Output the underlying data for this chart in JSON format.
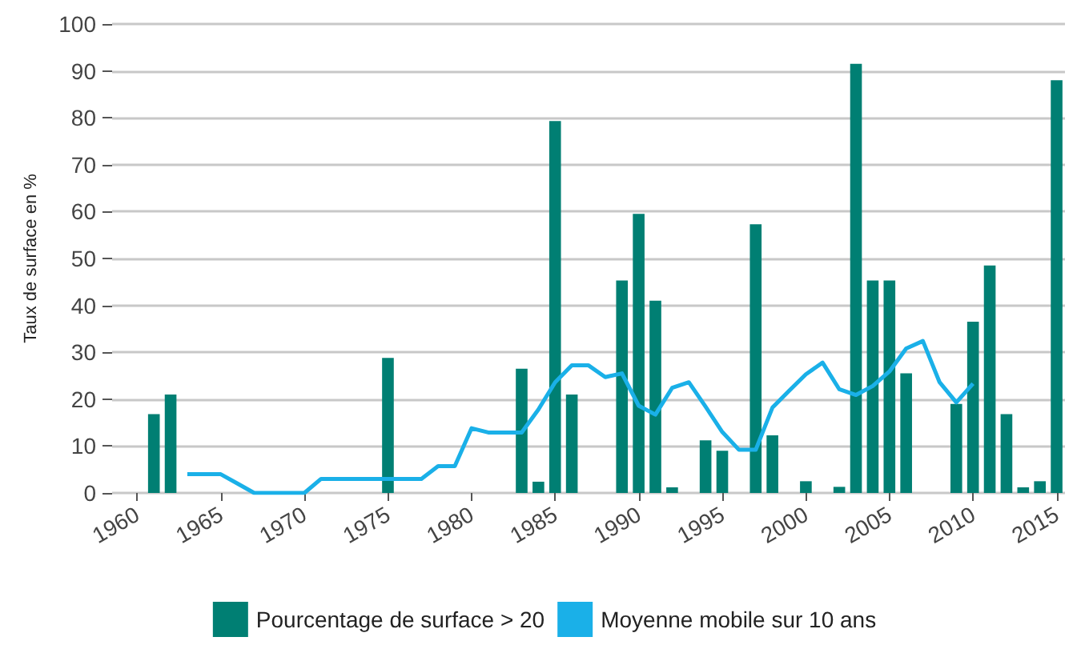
{
  "chart_data": {
    "type": "bar",
    "ylabel": "Taux de surface en %",
    "categories": [
      null,
      "1960",
      null,
      null,
      null,
      null,
      "1965",
      null,
      null,
      null,
      null,
      "1970",
      null,
      null,
      null,
      null,
      "1975",
      null,
      null,
      null,
      null,
      "1980",
      null,
      null,
      null,
      null,
      "1985",
      null,
      null,
      null,
      null,
      "1990",
      null,
      null,
      null,
      null,
      "1995",
      null,
      null,
      null,
      null,
      "2000",
      null,
      null,
      null,
      null,
      "2005",
      null,
      null,
      null,
      null,
      "2010",
      null,
      null,
      null,
      null,
      "2015"
    ],
    "series": [
      {
        "name": "Pourcentage de surface > 20",
        "color": "#007f73",
        "values": [
          0,
          0,
          16.8,
          21,
          0,
          0,
          0,
          0,
          0,
          0,
          0,
          0,
          0,
          0,
          0,
          0,
          28.8,
          0,
          0,
          0,
          0,
          0,
          0,
          0,
          26.5,
          2.4,
          79.3,
          21,
          0,
          0,
          45.3,
          59.5,
          41,
          1.2,
          0,
          11.2,
          9,
          0,
          57.3,
          12.3,
          0,
          2.5,
          0,
          1.3,
          91.5,
          45.3,
          45.3,
          25.5,
          0,
          0,
          19,
          36.5,
          48.5,
          16.8,
          1.2,
          2.5,
          88
        ]
      },
      {
        "name": "Moyenne mobile sur 10 ans",
        "type": "line",
        "color": "#1ab0e8",
        "values": [
          null,
          null,
          null,
          null,
          4,
          4,
          4,
          2,
          0,
          0,
          0,
          0,
          3,
          3,
          3,
          3,
          3,
          3,
          3,
          5.7,
          5.7,
          13.8,
          12.9,
          12.9,
          12.9,
          17.8,
          23.6,
          27.2,
          27.2,
          24.7,
          25.5,
          18.6,
          16.7,
          22.4,
          23.6,
          18.4,
          13,
          9.2,
          9.2,
          18.2,
          21.8,
          25.3,
          27.8,
          22.1,
          20.9,
          22.8,
          25.9,
          30.8,
          32.4,
          23.6,
          19.3,
          23.3,
          null,
          null,
          null,
          null,
          null
        ]
      }
    ],
    "ylim": [
      0,
      100
    ],
    "yticks": [
      0,
      10,
      20,
      30,
      40,
      50,
      60,
      70,
      80,
      90,
      100
    ],
    "grid": "y",
    "legend": "bottom",
    "marker": "none"
  }
}
